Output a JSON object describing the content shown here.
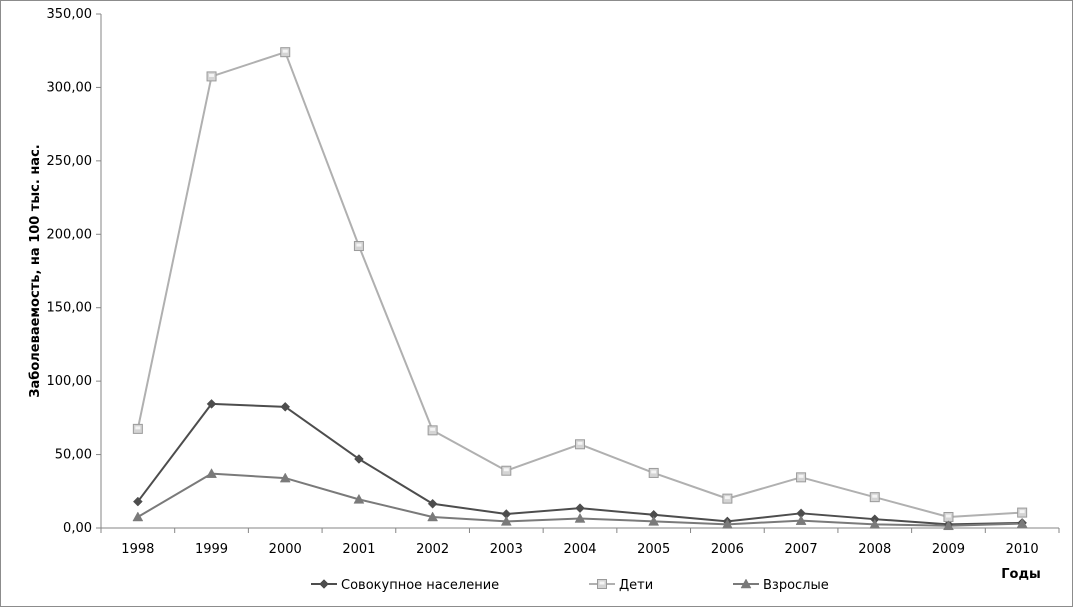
{
  "chart_data": {
    "type": "line",
    "title": "",
    "xlabel": "Годы",
    "ylabel": "Заболеваемость, на 100 тыс. нас.",
    "ylim": [
      0,
      350
    ],
    "ytick_values": [
      0,
      50,
      100,
      150,
      200,
      250,
      300,
      350
    ],
    "ytick_labels": [
      "0,00",
      "50,00",
      "100,00",
      "150,00",
      "200,00",
      "250,00",
      "300,00",
      "350,00"
    ],
    "categories": [
      "1998",
      "1999",
      "2000",
      "2001",
      "2002",
      "2003",
      "2004",
      "2005",
      "2006",
      "2007",
      "2008",
      "2009",
      "2010"
    ],
    "grid": false,
    "legend_position": "bottom",
    "series": [
      {
        "name": "Совокупное население",
        "marker": "diamond",
        "color": "#4d4d4d",
        "values": [
          18.0,
          84.5,
          82.5,
          47.0,
          16.5,
          9.5,
          13.5,
          9.0,
          4.5,
          10.0,
          6.0,
          2.5,
          3.5
        ]
      },
      {
        "name": "Дети",
        "marker": "square",
        "color": "#b0b0b0",
        "values": [
          67.5,
          307.5,
          324.0,
          192.0,
          66.5,
          39.0,
          57.0,
          37.5,
          20.0,
          34.5,
          21.0,
          7.5,
          10.5
        ]
      },
      {
        "name": "Взрослые",
        "marker": "triangle",
        "color": "#7a7a7a",
        "values": [
          7.5,
          37.0,
          34.0,
          19.5,
          7.5,
          4.5,
          6.5,
          4.5,
          2.5,
          5.0,
          2.5,
          1.5,
          3.0
        ]
      }
    ]
  }
}
